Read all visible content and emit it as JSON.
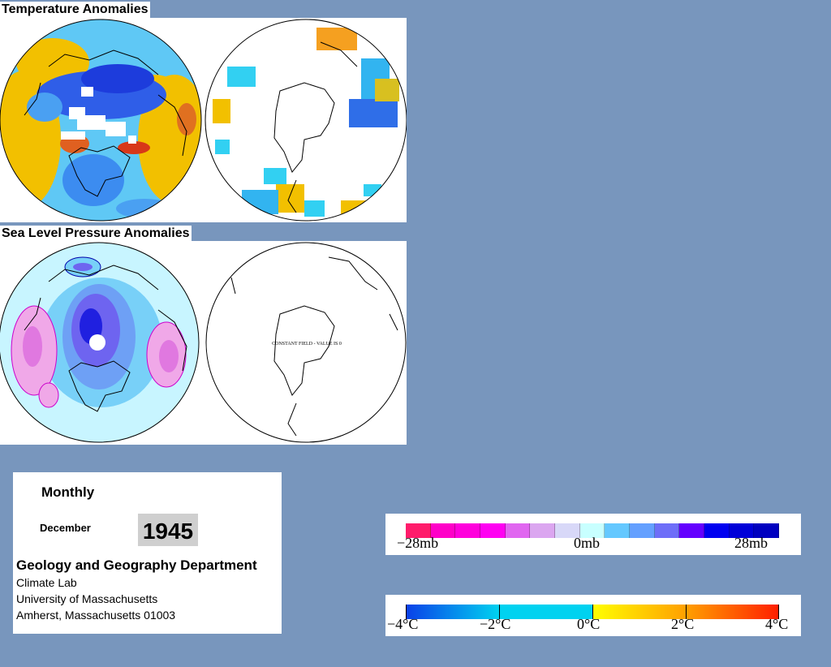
{
  "temperature_section": {
    "title": "Temperature Anomalies"
  },
  "pressure_section": {
    "title": "Sea Level Pressure Anomalies",
    "south_map_note": "CONSTANT FIELD - VALUE IS 0"
  },
  "info": {
    "frequency": "Monthly",
    "month": "December",
    "year": "1945",
    "department": "Geology and Geography Department",
    "lab": "Climate Lab",
    "university": "University of Massachusetts",
    "address": "Amherst, Massachusetts 01003"
  },
  "pressure_legend": {
    "labels": {
      "min": "−28mb",
      "mid": "0mb",
      "max": "28mb"
    },
    "colors": [
      "#ff1c6b",
      "#ff00c8",
      "#ff00dc",
      "#ff00f2",
      "#e066f0",
      "#dba6f0",
      "#d8d8f8",
      "#c8ffff",
      "#64c8ff",
      "#64a0ff",
      "#6e6ef8",
      "#6400ff",
      "#0000f0",
      "#0000d8",
      "#0000c0"
    ]
  },
  "temperature_legend": {
    "labels": {
      "min": "−4°C",
      "minus2": "−2°C",
      "zero": "0°C",
      "plus2": "2°C",
      "max": "4°C"
    },
    "colors": {
      "cold": "#0a40e8",
      "cool": "#00d2f0",
      "warm": "#ffff00",
      "mid_warm": "#ffa000",
      "hot": "#ff1e00"
    }
  },
  "colors": {
    "background": "#7896bd",
    "panel": "#ffffff"
  }
}
